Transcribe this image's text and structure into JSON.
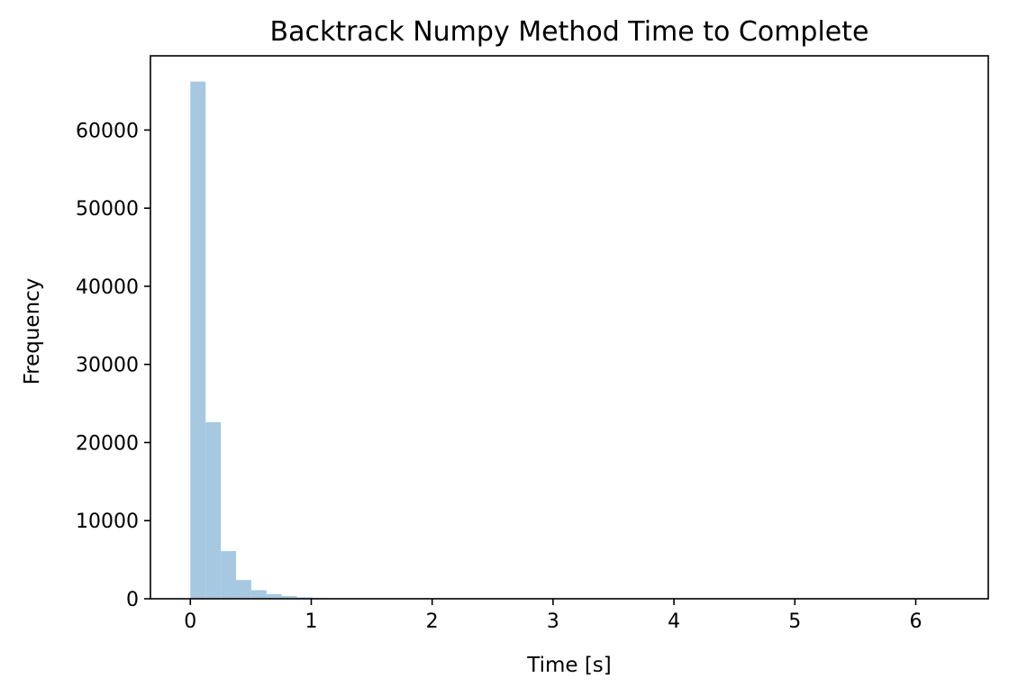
{
  "chart_data": {
    "type": "bar",
    "subtype": "histogram",
    "title": "Backtrack Numpy Method Time to Complete",
    "xlabel": "Time [s]",
    "ylabel": "Frequency",
    "xlim": [
      -0.33,
      6.6
    ],
    "ylim": [
      0,
      69500
    ],
    "xticks": [
      0,
      1,
      2,
      3,
      4,
      5,
      6
    ],
    "yticks": [
      0,
      10000,
      20000,
      30000,
      40000,
      50000,
      60000
    ],
    "bin_width": 0.126,
    "bin_start": 0.0,
    "bar_color": "#a6c8e0",
    "grid": false,
    "legend": "none",
    "values": [
      66200,
      22600,
      6100,
      2400,
      1100,
      600,
      350,
      180,
      110,
      70,
      50,
      40,
      30,
      22,
      18,
      14,
      12,
      10,
      9,
      8,
      7,
      6,
      6,
      5,
      5,
      4,
      4,
      4,
      3,
      3,
      3,
      3,
      2,
      2,
      2,
      2,
      2,
      2,
      2,
      1,
      1,
      1,
      1,
      1,
      1,
      1,
      1,
      1,
      1,
      1
    ]
  }
}
